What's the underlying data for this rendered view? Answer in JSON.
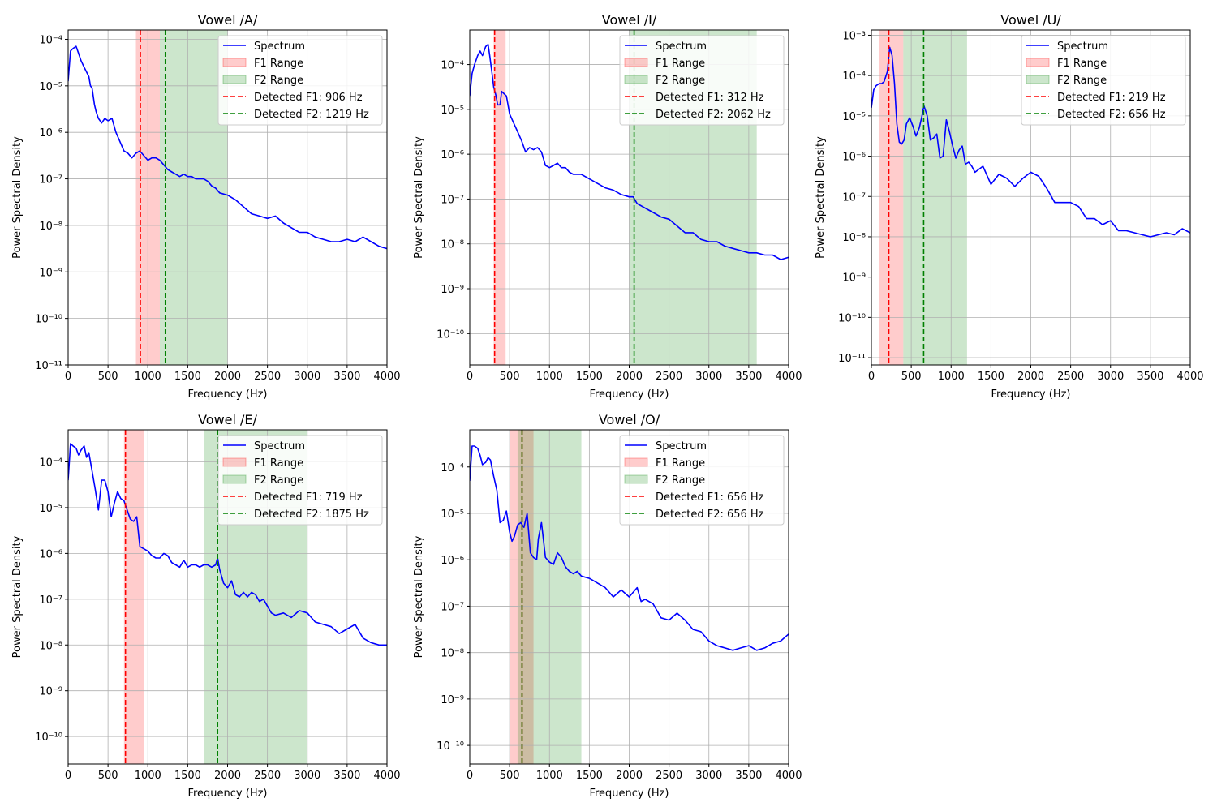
{
  "chart_data": [
    {
      "type": "line",
      "title": "Vowel /A/",
      "xlabel": "Frequency (Hz)",
      "ylabel": "Power Spectral Density",
      "xlim": [
        0,
        4000
      ],
      "ylim_log10": [
        -11,
        -3.8
      ],
      "yscale": "log",
      "grid": true,
      "legend_position": "top-right",
      "x_ticks": [
        0,
        500,
        1000,
        1500,
        2000,
        2500,
        3000,
        3500,
        4000
      ],
      "y_ticks_exp": [
        -11,
        -10,
        -9,
        -8,
        -7,
        -6,
        -5,
        -4
      ],
      "legend": [
        "Spectrum",
        "F1 Range",
        "F2 Range",
        "Detected F1: 906 Hz",
        "Detected F2: 1219 Hz"
      ],
      "f1_range": [
        850,
        1150
      ],
      "f2_range": [
        1150,
        2000
      ],
      "detected_f1": 906,
      "detected_f2": 1219,
      "series": [
        {
          "name": "Spectrum",
          "x": [
            0,
            30,
            60,
            100,
            130,
            160,
            200,
            230,
            260,
            280,
            300,
            330,
            350,
            380,
            420,
            460,
            500,
            550,
            600,
            650,
            700,
            750,
            800,
            850,
            900,
            950,
            1000,
            1050,
            1100,
            1150,
            1200,
            1250,
            1300,
            1350,
            1400,
            1450,
            1500,
            1550,
            1600,
            1650,
            1700,
            1750,
            1800,
            1850,
            1900,
            2000,
            2100,
            2200,
            2300,
            2400,
            2500,
            2600,
            2700,
            2800,
            2900,
            3000,
            3100,
            3200,
            3300,
            3400,
            3500,
            3600,
            3700,
            3800,
            3900,
            4000
          ],
          "y_log10": [
            -4.9,
            -4.25,
            -4.2,
            -4.15,
            -4.3,
            -4.45,
            -4.6,
            -4.7,
            -4.8,
            -5.0,
            -5.05,
            -5.4,
            -5.55,
            -5.7,
            -5.8,
            -5.7,
            -5.75,
            -5.7,
            -6.0,
            -6.2,
            -6.4,
            -6.45,
            -6.55,
            -6.45,
            -6.4,
            -6.5,
            -6.6,
            -6.55,
            -6.55,
            -6.6,
            -6.7,
            -6.8,
            -6.85,
            -6.9,
            -6.95,
            -6.9,
            -6.95,
            -6.95,
            -7.0,
            -7.0,
            -7.0,
            -7.05,
            -7.15,
            -7.2,
            -7.3,
            -7.35,
            -7.45,
            -7.6,
            -7.75,
            -7.8,
            -7.85,
            -7.8,
            -7.95,
            -8.05,
            -8.15,
            -8.15,
            -8.25,
            -8.3,
            -8.35,
            -8.35,
            -8.3,
            -8.35,
            -8.25,
            -8.35,
            -8.45,
            -8.5
          ]
        }
      ]
    },
    {
      "type": "line",
      "title": "Vowel /I/",
      "xlabel": "Frequency (Hz)",
      "ylabel": "Power Spectral Density",
      "xlim": [
        0,
        4000
      ],
      "ylim_log10": [
        -10.7,
        -3.23
      ],
      "yscale": "log",
      "grid": true,
      "legend_position": "top-right",
      "x_ticks": [
        0,
        500,
        1000,
        1500,
        2000,
        2500,
        3000,
        3500,
        4000
      ],
      "y_ticks_exp": [
        -10,
        -9,
        -8,
        -7,
        -6,
        -5,
        -4
      ],
      "legend": [
        "Spectrum",
        "F1 Range",
        "F2 Range",
        "Detected F1: 312 Hz",
        "Detected F2: 2062 Hz"
      ],
      "f1_range": [
        300,
        450
      ],
      "f2_range": [
        2000,
        3600
      ],
      "detected_f1": 312,
      "detected_f2": 2062,
      "series": [
        {
          "name": "Spectrum",
          "x": [
            0,
            30,
            60,
            100,
            130,
            160,
            200,
            230,
            250,
            280,
            300,
            330,
            350,
            380,
            400,
            430,
            460,
            500,
            550,
            600,
            650,
            700,
            750,
            800,
            850,
            900,
            950,
            1000,
            1050,
            1100,
            1150,
            1200,
            1250,
            1300,
            1350,
            1400,
            1450,
            1500,
            1600,
            1700,
            1800,
            1900,
            2000,
            2050,
            2100,
            2200,
            2300,
            2400,
            2500,
            2600,
            2700,
            2800,
            2900,
            3000,
            3100,
            3200,
            3300,
            3400,
            3500,
            3600,
            3700,
            3800,
            3900,
            4000
          ],
          "y_log10": [
            -4.7,
            -4.2,
            -4.0,
            -3.8,
            -3.7,
            -3.8,
            -3.6,
            -3.55,
            -3.8,
            -4.2,
            -4.5,
            -4.7,
            -4.9,
            -4.9,
            -4.6,
            -4.65,
            -4.7,
            -5.1,
            -5.3,
            -5.5,
            -5.7,
            -5.95,
            -5.85,
            -5.9,
            -5.85,
            -5.95,
            -6.25,
            -6.3,
            -6.25,
            -6.2,
            -6.3,
            -6.3,
            -6.4,
            -6.45,
            -6.45,
            -6.45,
            -6.5,
            -6.55,
            -6.65,
            -6.75,
            -6.8,
            -6.9,
            -6.95,
            -6.95,
            -7.1,
            -7.2,
            -7.3,
            -7.4,
            -7.45,
            -7.6,
            -7.75,
            -7.75,
            -7.9,
            -7.95,
            -7.95,
            -8.05,
            -8.1,
            -8.15,
            -8.2,
            -8.2,
            -8.25,
            -8.25,
            -8.35,
            -8.3
          ]
        }
      ]
    },
    {
      "type": "line",
      "title": "Vowel /U/",
      "xlabel": "Frequency (Hz)",
      "ylabel": "Power Spectral Density",
      "xlim": [
        0,
        4000
      ],
      "ylim_log10": [
        -11.18,
        -2.87
      ],
      "yscale": "log",
      "grid": true,
      "legend_position": "top-right",
      "x_ticks": [
        0,
        500,
        1000,
        1500,
        2000,
        2500,
        3000,
        3500,
        4000
      ],
      "y_ticks_exp": [
        -11,
        -10,
        -9,
        -8,
        -7,
        -6,
        -5,
        -4,
        -3
      ],
      "legend": [
        "Spectrum",
        "F1 Range",
        "F2 Range",
        "Detected F1: 219 Hz",
        "Detected F2: 656 Hz"
      ],
      "f1_range": [
        100,
        400
      ],
      "f2_range": [
        400,
        1200
      ],
      "detected_f1": 219,
      "detected_f2": 656,
      "series": [
        {
          "name": "Spectrum",
          "x": [
            0,
            30,
            60,
            100,
            130,
            160,
            200,
            230,
            260,
            290,
            320,
            350,
            380,
            410,
            440,
            480,
            520,
            560,
            600,
            630,
            660,
            700,
            740,
            780,
            820,
            860,
            900,
            940,
            980,
            1020,
            1060,
            1100,
            1140,
            1180,
            1220,
            1260,
            1300,
            1400,
            1500,
            1600,
            1700,
            1800,
            1900,
            2000,
            2100,
            2200,
            2300,
            2400,
            2500,
            2600,
            2700,
            2800,
            2900,
            3000,
            3100,
            3200,
            3300,
            3400,
            3500,
            3600,
            3700,
            3800,
            3900,
            4000
          ],
          "y_log10": [
            -4.8,
            -4.35,
            -4.25,
            -4.2,
            -4.2,
            -4.15,
            -3.9,
            -3.3,
            -3.5,
            -4.2,
            -5.2,
            -5.65,
            -5.7,
            -5.6,
            -5.2,
            -5.05,
            -5.25,
            -5.5,
            -5.3,
            -5.05,
            -4.75,
            -5.0,
            -5.6,
            -5.55,
            -5.45,
            -6.05,
            -6.0,
            -5.1,
            -5.4,
            -5.75,
            -6.05,
            -5.85,
            -5.75,
            -6.2,
            -6.15,
            -6.25,
            -6.4,
            -6.25,
            -6.7,
            -6.45,
            -6.55,
            -6.75,
            -6.55,
            -6.4,
            -6.5,
            -6.8,
            -7.15,
            -7.15,
            -7.15,
            -7.25,
            -7.55,
            -7.55,
            -7.7,
            -7.6,
            -7.85,
            -7.85,
            -7.9,
            -7.95,
            -8.0,
            -7.95,
            -7.9,
            -7.95,
            -7.8,
            -7.9
          ]
        }
      ]
    },
    {
      "type": "line",
      "title": "Vowel /E/",
      "xlabel": "Frequency (Hz)",
      "ylabel": "Power Spectral Density",
      "xlim": [
        0,
        4000
      ],
      "ylim_log10": [
        -10.6,
        -3.3
      ],
      "yscale": "log",
      "grid": true,
      "legend_position": "top-right",
      "x_ticks": [
        0,
        500,
        1000,
        1500,
        2000,
        2500,
        3000,
        3500,
        4000
      ],
      "y_ticks_exp": [
        -10,
        -9,
        -8,
        -7,
        -6,
        -5,
        -4
      ],
      "legend": [
        "Spectrum",
        "F1 Range",
        "F2 Range",
        "Detected F1: 719 Hz",
        "Detected F2: 1875 Hz"
      ],
      "f1_range": [
        700,
        950
      ],
      "f2_range": [
        1700,
        3000
      ],
      "detected_f1": 719,
      "detected_f2": 1875,
      "series": [
        {
          "name": "Spectrum",
          "x": [
            0,
            30,
            60,
            100,
            130,
            160,
            200,
            230,
            260,
            300,
            340,
            380,
            420,
            460,
            500,
            540,
            580,
            620,
            660,
            700,
            740,
            780,
            820,
            860,
            900,
            950,
            1000,
            1050,
            1100,
            1150,
            1200,
            1250,
            1300,
            1350,
            1400,
            1450,
            1500,
            1550,
            1600,
            1650,
            1700,
            1750,
            1800,
            1850,
            1875,
            1900,
            1950,
            2000,
            2050,
            2100,
            2150,
            2200,
            2250,
            2300,
            2350,
            2400,
            2450,
            2500,
            2550,
            2600,
            2700,
            2800,
            2900,
            3000,
            3100,
            3200,
            3300,
            3400,
            3500,
            3600,
            3700,
            3800,
            3900,
            4000
          ],
          "y_log10": [
            -4.4,
            -3.6,
            -3.65,
            -3.7,
            -3.85,
            -3.75,
            -3.65,
            -3.9,
            -3.8,
            -4.2,
            -4.6,
            -5.05,
            -4.4,
            -4.4,
            -4.65,
            -5.2,
            -4.9,
            -4.65,
            -4.8,
            -4.85,
            -5.05,
            -5.25,
            -5.3,
            -5.2,
            -5.85,
            -5.9,
            -5.95,
            -6.05,
            -6.1,
            -6.1,
            -6.0,
            -6.05,
            -6.2,
            -6.25,
            -6.3,
            -6.15,
            -6.3,
            -6.25,
            -6.25,
            -6.3,
            -6.25,
            -6.25,
            -6.3,
            -6.25,
            -6.1,
            -6.35,
            -6.65,
            -6.75,
            -6.6,
            -6.9,
            -6.95,
            -6.85,
            -6.95,
            -6.85,
            -6.9,
            -7.05,
            -7.0,
            -7.15,
            -7.3,
            -7.35,
            -7.3,
            -7.4,
            -7.25,
            -7.3,
            -7.5,
            -7.55,
            -7.6,
            -7.75,
            -7.65,
            -7.55,
            -7.85,
            -7.95,
            -8.0,
            -8.0
          ]
        }
      ]
    },
    {
      "type": "line",
      "title": "Vowel /O/",
      "xlabel": "Frequency (Hz)",
      "ylabel": "Power Spectral Density",
      "xlim": [
        0,
        4000
      ],
      "ylim_log10": [
        -10.4,
        -3.2
      ],
      "yscale": "log",
      "grid": true,
      "legend_position": "top-right",
      "x_ticks": [
        0,
        500,
        1000,
        1500,
        2000,
        2500,
        3000,
        3500,
        4000
      ],
      "y_ticks_exp": [
        -10,
        -9,
        -8,
        -7,
        -6,
        -5,
        -4
      ],
      "legend": [
        "Spectrum",
        "F1 Range",
        "F2 Range",
        "Detected F1: 656 Hz",
        "Detected F2: 656 Hz"
      ],
      "f1_range": [
        500,
        800
      ],
      "f2_range": [
        600,
        1400
      ],
      "detected_f1": 656,
      "detected_f2": 656,
      "series": [
        {
          "name": "Spectrum",
          "x": [
            0,
            30,
            60,
            100,
            130,
            160,
            200,
            230,
            260,
            300,
            340,
            380,
            420,
            460,
            500,
            530,
            560,
            600,
            640,
            680,
            720,
            760,
            800,
            840,
            860,
            900,
            950,
            1000,
            1050,
            1100,
            1150,
            1200,
            1250,
            1300,
            1350,
            1400,
            1500,
            1600,
            1700,
            1800,
            1900,
            2000,
            2100,
            2150,
            2200,
            2300,
            2400,
            2500,
            2600,
            2700,
            2800,
            2900,
            3000,
            3100,
            3200,
            3300,
            3400,
            3500,
            3600,
            3700,
            3800,
            3900,
            4000
          ],
          "y_log10": [
            -4.3,
            -3.55,
            -3.55,
            -3.6,
            -3.75,
            -3.95,
            -3.9,
            -3.8,
            -3.85,
            -4.2,
            -4.5,
            -5.2,
            -5.15,
            -4.95,
            -5.4,
            -5.6,
            -5.5,
            -5.25,
            -5.2,
            -5.3,
            -5.0,
            -5.85,
            -5.95,
            -6.0,
            -5.55,
            -5.2,
            -5.95,
            -6.05,
            -6.1,
            -5.85,
            -5.95,
            -6.15,
            -6.25,
            -6.3,
            -6.25,
            -6.35,
            -6.4,
            -6.5,
            -6.6,
            -6.8,
            -6.65,
            -6.8,
            -6.6,
            -6.9,
            -6.85,
            -6.95,
            -7.25,
            -7.3,
            -7.15,
            -7.3,
            -7.5,
            -7.55,
            -7.75,
            -7.85,
            -7.9,
            -7.95,
            -7.9,
            -7.85,
            -7.95,
            -7.9,
            -7.8,
            -7.75,
            -7.6
          ]
        }
      ]
    }
  ]
}
